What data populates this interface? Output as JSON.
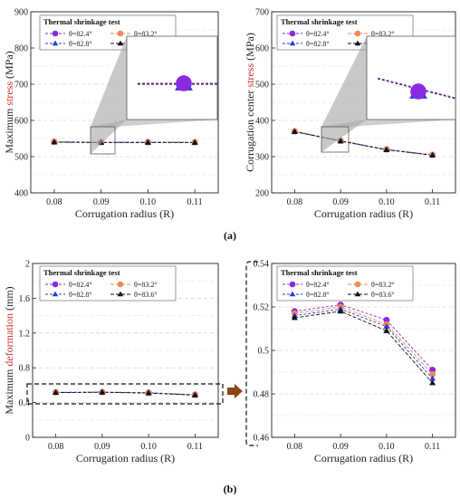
{
  "figure": {
    "label_a": "(a)",
    "label_b": "(b)"
  },
  "colors": {
    "s824": "#8a2be2",
    "s832": "#f08a5a",
    "s828": "#2a3bd6",
    "s836": "#111111",
    "highlight": "#d22b2b",
    "arrow": "#8b4513"
  },
  "chart_data": [
    {
      "id": "a-left",
      "type": "line",
      "legend_title": "Thermal shrinkage test",
      "ylabel_pre": "Maximum ",
      "ylabel_hl": "stress",
      "ylabel_post": " (MPa)",
      "xlabel": "Corrugation radius (R)",
      "x": [
        0.08,
        0.09,
        0.1,
        0.11
      ],
      "xticks": [
        "0.08",
        "0.09",
        "0.10",
        "0.11"
      ],
      "ylim": [
        400,
        900
      ],
      "yticks": [
        "400",
        "500",
        "600",
        "700",
        "800",
        "900"
      ],
      "series": [
        {
          "name": "θ=82.4°",
          "values": [
            541,
            540,
            540,
            540
          ]
        },
        {
          "name": "θ=83.2°",
          "values": [
            541,
            540,
            540,
            540
          ]
        },
        {
          "name": "θ=82.8°",
          "values": [
            540,
            539,
            540,
            539
          ]
        },
        {
          "name": "θ=83.6°",
          "values": [
            540,
            539,
            539,
            539
          ]
        }
      ]
    },
    {
      "id": "a-right",
      "type": "line",
      "legend_title": "Thermal shrinkage test",
      "ylabel_pre": "Corrugation center ",
      "ylabel_hl": "stress",
      "ylabel_post": " (MPa)",
      "xlabel": "Corrugation radius (R)",
      "x": [
        0.08,
        0.09,
        0.1,
        0.11
      ],
      "xticks": [
        "0.08",
        "0.09",
        "0.10",
        "0.11"
      ],
      "ylim": [
        200,
        700
      ],
      "yticks": [
        "200",
        "300",
        "400",
        "500",
        "600",
        "700"
      ],
      "series": [
        {
          "name": "θ=82.4°",
          "values": [
            370,
            344,
            320,
            305
          ]
        },
        {
          "name": "θ=83.2°",
          "values": [
            370,
            344,
            320,
            305
          ]
        },
        {
          "name": "θ=82.8°",
          "values": [
            369,
            343,
            319,
            304
          ]
        },
        {
          "name": "θ=83.6°",
          "values": [
            369,
            343,
            319,
            304
          ]
        }
      ]
    },
    {
      "id": "b-left",
      "type": "line",
      "legend_title": "Thermal shrinkage test",
      "ylabel_pre": "Maximum ",
      "ylabel_hl": "deformation",
      "ylabel_post": " (mm)",
      "xlabel": "Corrugation radius (R)",
      "x": [
        0.08,
        0.09,
        0.1,
        0.11
      ],
      "xticks": [
        "0.08",
        "0.09",
        "0.10",
        "0.11"
      ],
      "ylim": [
        0,
        2
      ],
      "yticks": [
        "0",
        "0.4",
        "0.8",
        "1.2",
        "1.6",
        "2"
      ],
      "series": [
        {
          "name": "θ=82.4°",
          "values": [
            0.518,
            0.521,
            0.514,
            0.491
          ]
        },
        {
          "name": "θ=83.2°",
          "values": [
            0.517,
            0.52,
            0.512,
            0.489
          ]
        },
        {
          "name": "θ=82.8°",
          "values": [
            0.516,
            0.519,
            0.511,
            0.487
          ]
        },
        {
          "name": "θ=83.6°",
          "values": [
            0.515,
            0.518,
            0.509,
            0.485
          ]
        }
      ]
    },
    {
      "id": "b-right",
      "type": "line",
      "legend_title": "Thermal shrinkage test",
      "ylabel_pre": "",
      "ylabel_hl": "",
      "ylabel_post": "",
      "xlabel": "Corrugation radius (R)",
      "x": [
        0.08,
        0.09,
        0.1,
        0.11
      ],
      "xticks": [
        "0.08",
        "0.09",
        "0.10",
        "0.11"
      ],
      "ylim": [
        0.46,
        0.54
      ],
      "yticks": [
        "0.46",
        "0.48",
        "0.5",
        "0.52",
        "0.54"
      ],
      "series": [
        {
          "name": "θ=82.4°",
          "values": [
            0.518,
            0.521,
            0.514,
            0.491
          ]
        },
        {
          "name": "θ=83.2°",
          "values": [
            0.517,
            0.52,
            0.512,
            0.489
          ]
        },
        {
          "name": "θ=82.8°",
          "values": [
            0.516,
            0.519,
            0.511,
            0.487
          ]
        },
        {
          "name": "θ=83.6°",
          "values": [
            0.515,
            0.518,
            0.509,
            0.485
          ]
        }
      ]
    }
  ]
}
